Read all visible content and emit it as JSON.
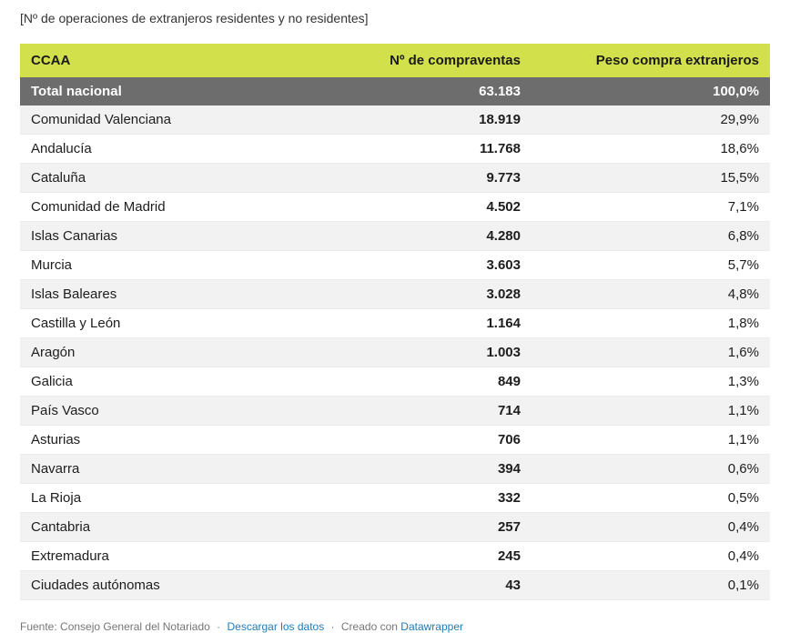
{
  "subtitle": "[Nº de operaciones de extranjeros residentes y no residentes]",
  "table": {
    "columns": [
      "CCAA",
      "Nº de compraventas",
      "Peso compra extranjeros"
    ],
    "total_row": {
      "name": "Total nacional",
      "operations": "63.183",
      "share": "100,0%"
    },
    "rows": [
      {
        "name": "Comunidad Valenciana",
        "operations": "18.919",
        "share": "29,9%"
      },
      {
        "name": "Andalucía",
        "operations": "11.768",
        "share": "18,6%"
      },
      {
        "name": "Cataluña",
        "operations": "9.773",
        "share": "15,5%"
      },
      {
        "name": "Comunidad de Madrid",
        "operations": "4.502",
        "share": "7,1%"
      },
      {
        "name": "Islas Canarias",
        "operations": "4.280",
        "share": "6,8%"
      },
      {
        "name": "Murcia",
        "operations": "3.603",
        "share": "5,7%"
      },
      {
        "name": "Islas Baleares",
        "operations": "3.028",
        "share": "4,8%"
      },
      {
        "name": "Castilla y León",
        "operations": "1.164",
        "share": "1,8%"
      },
      {
        "name": "Aragón",
        "operations": "1.003",
        "share": "1,6%"
      },
      {
        "name": "Galicia",
        "operations": "849",
        "share": "1,3%"
      },
      {
        "name": "País Vasco",
        "operations": "714",
        "share": "1,1%"
      },
      {
        "name": "Asturias",
        "operations": "706",
        "share": "1,1%"
      },
      {
        "name": "Navarra",
        "operations": "394",
        "share": "0,6%"
      },
      {
        "name": "La Rioja",
        "operations": "332",
        "share": "0,5%"
      },
      {
        "name": "Cantabria",
        "operations": "257",
        "share": "0,4%"
      },
      {
        "name": "Extremadura",
        "operations": "245",
        "share": "0,4%"
      },
      {
        "name": "Ciudades autónomas",
        "operations": "43",
        "share": "0,1%"
      }
    ]
  },
  "footer": {
    "source": "Fuente: Consejo General del Notariado",
    "separator": "·",
    "download_label": "Descargar los datos",
    "created_with": "Creado con",
    "datawrapper_label": "Datawrapper"
  },
  "colors": {
    "header_bg": "#d2e04b",
    "total_bg": "#6d6d6d",
    "stripe": "#f2f2f2",
    "link": "#1f7bb6"
  },
  "chart_data": {
    "type": "table",
    "title": "[Nº de operaciones de extranjeros residentes y no residentes]",
    "columns": [
      "CCAA",
      "Nº de compraventas",
      "Peso compra extranjeros"
    ],
    "rows": [
      [
        "Total nacional",
        63183,
        "100,0%"
      ],
      [
        "Comunidad Valenciana",
        18919,
        "29,9%"
      ],
      [
        "Andalucía",
        11768,
        "18,6%"
      ],
      [
        "Cataluña",
        9773,
        "15,5%"
      ],
      [
        "Comunidad de Madrid",
        4502,
        "7,1%"
      ],
      [
        "Islas Canarias",
        4280,
        "6,8%"
      ],
      [
        "Murcia",
        3603,
        "5,7%"
      ],
      [
        "Islas Baleares",
        3028,
        "4,8%"
      ],
      [
        "Castilla y León",
        1164,
        "1,8%"
      ],
      [
        "Aragón",
        1003,
        "1,6%"
      ],
      [
        "Galicia",
        849,
        "1,3%"
      ],
      [
        "País Vasco",
        714,
        "1,1%"
      ],
      [
        "Asturias",
        706,
        "1,1%"
      ],
      [
        "Navarra",
        394,
        "0,6%"
      ],
      [
        "La Rioja",
        332,
        "0,5%"
      ],
      [
        "Cantabria",
        257,
        "0,4%"
      ],
      [
        "Extremadura",
        245,
        "0,4%"
      ],
      [
        "Ciudades autónomas",
        43,
        "0,1%"
      ]
    ],
    "source": "Fuente: Consejo General del Notariado",
    "legend_position": "none",
    "grid": false
  }
}
